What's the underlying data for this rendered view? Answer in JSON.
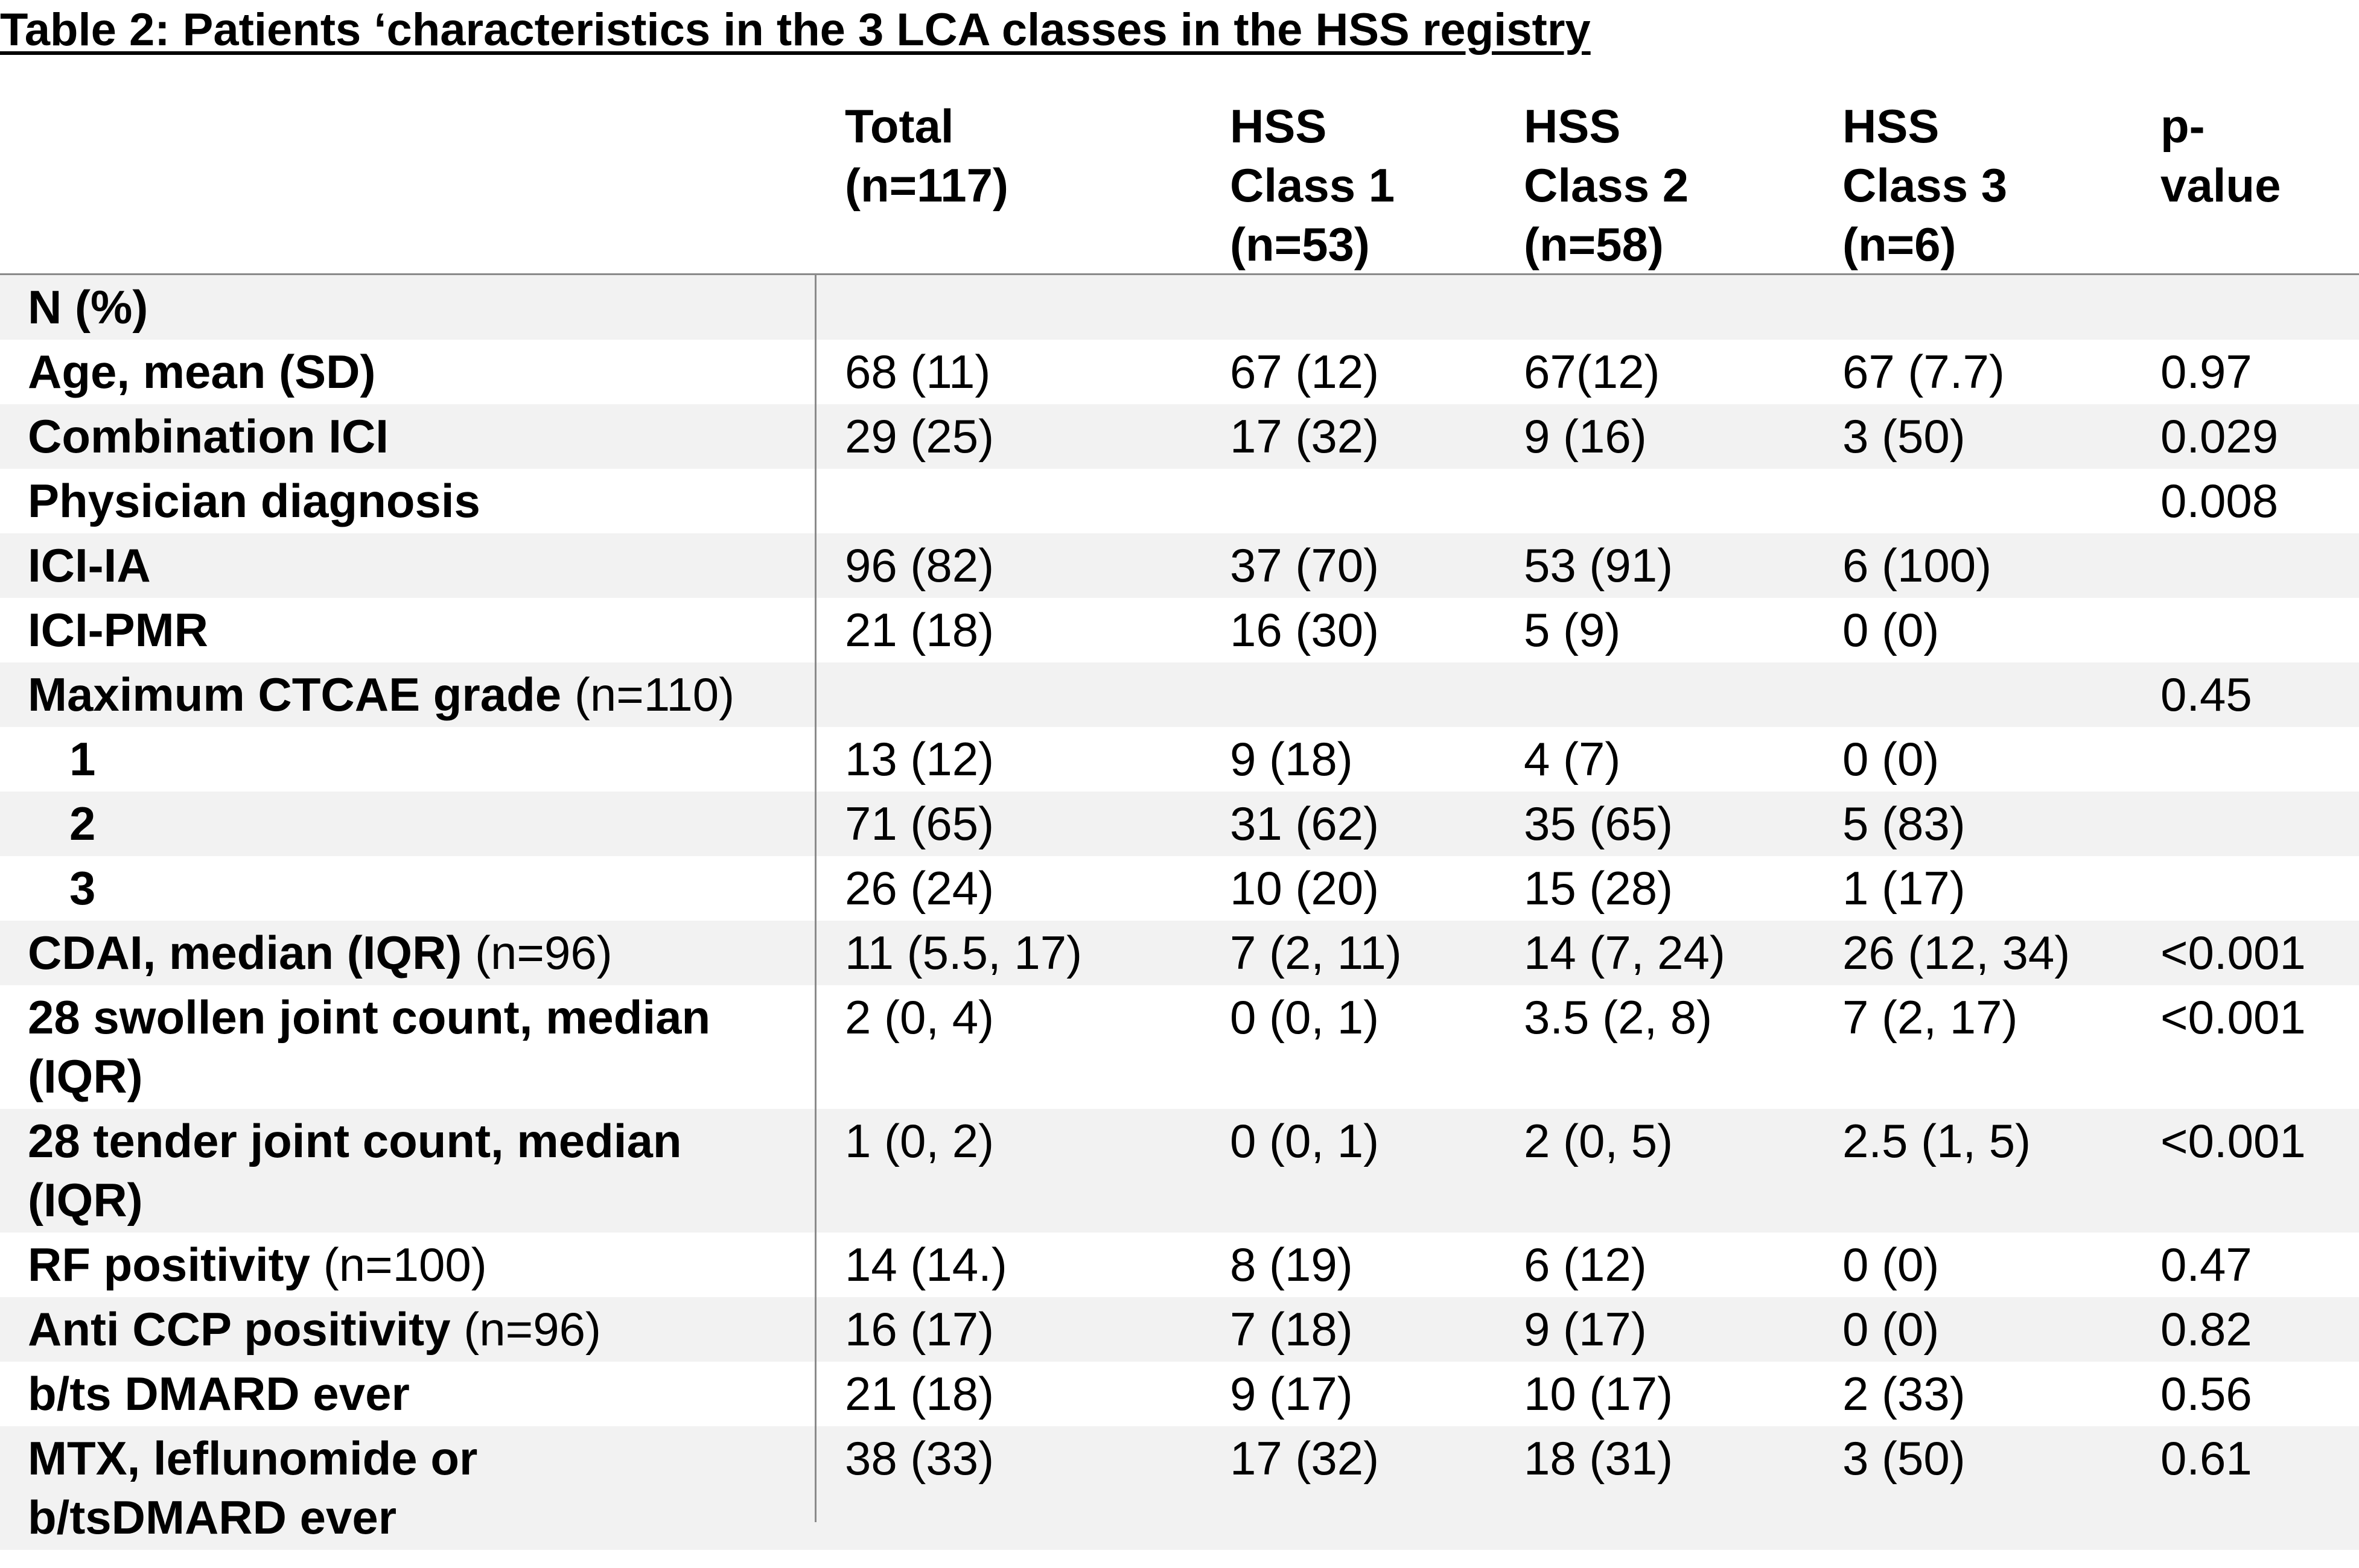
{
  "title": "Table 2:  Patients ‘characteristics in the 3 LCA classes in the HSS registry",
  "header": {
    "total": [
      "Total",
      "(n=117)"
    ],
    "class1": [
      "HSS",
      "Class 1",
      "(n=53)"
    ],
    "class2": [
      "HSS",
      "Class 2",
      "(n=58)"
    ],
    "class3": [
      "HSS",
      "Class 3",
      "(n=6)"
    ],
    "pvalue": [
      "p-",
      "value"
    ]
  },
  "rows": [
    {
      "label": [
        "N (%)"
      ],
      "note": "",
      "indent": false,
      "values": [
        "",
        "",
        "",
        "",
        ""
      ]
    },
    {
      "label": [
        "Age, mean (SD)"
      ],
      "note": "",
      "indent": false,
      "values": [
        "68 (11)",
        "67 (12)",
        "67(12)",
        "67 (7.7)",
        "0.97"
      ]
    },
    {
      "label": [
        "Combination ICI"
      ],
      "note": "",
      "indent": false,
      "values": [
        "29 (25)",
        "17 (32)",
        "9 (16)",
        "3 (50)",
        "0.029"
      ]
    },
    {
      "label": [
        "Physician diagnosis"
      ],
      "note": "",
      "indent": false,
      "values": [
        "",
        "",
        "",
        "",
        "0.008"
      ]
    },
    {
      "label": [
        "ICI-IA"
      ],
      "note": "",
      "indent": false,
      "values": [
        "96 (82)",
        "37 (70)",
        "53 (91)",
        "6 (100)",
        ""
      ]
    },
    {
      "label": [
        "ICI-PMR"
      ],
      "note": "",
      "indent": false,
      "values": [
        "21 (18)",
        "16 (30)",
        "5 (9)",
        "0 (0)",
        ""
      ]
    },
    {
      "label": [
        "Maximum CTCAE grade"
      ],
      "note": " (n=110)",
      "indent": false,
      "values": [
        "",
        "",
        "",
        "",
        "0.45"
      ]
    },
    {
      "label": [
        "1"
      ],
      "note": "",
      "indent": true,
      "values": [
        "13 (12)",
        "9 (18)",
        "4 (7)",
        "0 (0)",
        ""
      ]
    },
    {
      "label": [
        "2"
      ],
      "note": "",
      "indent": true,
      "values": [
        "71 (65)",
        "31 (62)",
        "35 (65)",
        "5 (83)",
        ""
      ]
    },
    {
      "label": [
        "3"
      ],
      "note": "",
      "indent": true,
      "values": [
        "26 (24)",
        "10 (20)",
        "15 (28)",
        "1 (17)",
        ""
      ]
    },
    {
      "label": [
        "CDAI, median (IQR)"
      ],
      "note": " (n=96)",
      "indent": false,
      "values": [
        "11 (5.5, 17)",
        "7 (2, 11)",
        "14 (7, 24)",
        "26 (12, 34)",
        "<0.001"
      ]
    },
    {
      "label": [
        "28 swollen joint count, median",
        "(IQR)"
      ],
      "note": "",
      "indent": false,
      "values": [
        "2 (0, 4)",
        "0 (0, 1)",
        "3.5 (2, 8)",
        "7 (2, 17)",
        "<0.001"
      ]
    },
    {
      "label": [
        "28 tender joint count, median",
        "(IQR)"
      ],
      "note": "",
      "indent": false,
      "values": [
        "1 (0, 2)",
        "0 (0, 1)",
        "2 (0, 5)",
        "2.5 (1, 5)",
        "<0.001"
      ]
    },
    {
      "label": [
        "RF positivity"
      ],
      "note": " (n=100)",
      "indent": false,
      "values": [
        "14 (14.)",
        "8 (19)",
        "6 (12)",
        "0 (0)",
        "0.47"
      ]
    },
    {
      "label": [
        "Anti CCP positivity"
      ],
      "note": " (n=96)",
      "indent": false,
      "values": [
        "16 (17)",
        "7 (18)",
        "9 (17)",
        "0 (0)",
        "0.82"
      ]
    },
    {
      "label": [
        "b/ts DMARD ever"
      ],
      "note": "",
      "indent": false,
      "values": [
        "21 (18)",
        "9 (17)",
        "10 (17)",
        "2 (33)",
        "0.56"
      ]
    },
    {
      "label": [
        "MTX, leflunomide or",
        "b/tsDMARD ever"
      ],
      "note": "",
      "indent": false,
      "values": [
        "38 (33)",
        "17 (32)",
        "18 (31)",
        "3 (50)",
        "0.61"
      ]
    }
  ]
}
